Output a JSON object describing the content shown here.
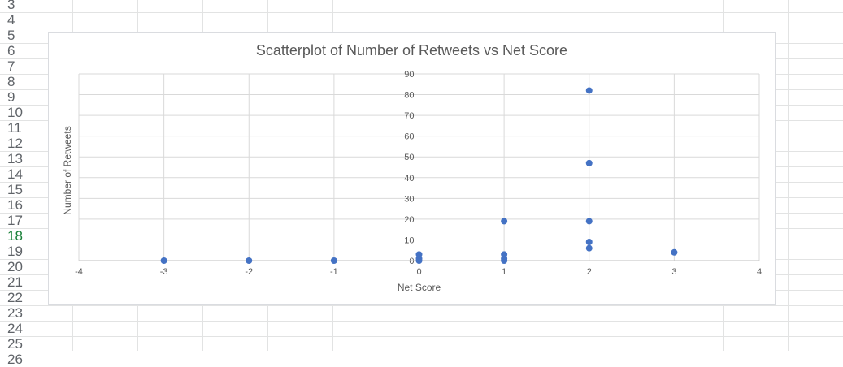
{
  "sheet": {
    "row_numbers": [
      "3",
      "4",
      "5",
      "6",
      "7",
      "8",
      "9",
      "10",
      "11",
      "12",
      "13",
      "14",
      "15",
      "16",
      "17",
      "18",
      "19",
      "20",
      "21",
      "22",
      "23",
      "24",
      "25",
      "26"
    ],
    "active_row": "18",
    "active_row_color": "#188038",
    "grid_color": "#e2e3e3"
  },
  "chart_data": {
    "type": "scatter",
    "title": "Scatterplot of Number of Retweets vs Net Score",
    "xlabel": "Net Score",
    "ylabel": "Number of Retweets",
    "xlim": [
      -4,
      4
    ],
    "ylim": [
      0,
      90
    ],
    "xticks": [
      -4,
      -3,
      -2,
      -1,
      0,
      1,
      2,
      3,
      4
    ],
    "yticks": [
      0,
      10,
      20,
      30,
      40,
      50,
      60,
      70,
      80,
      90
    ],
    "grid": true,
    "marker_color": "#4472c4",
    "points": [
      {
        "x": -3,
        "y": 0
      },
      {
        "x": -2,
        "y": 0
      },
      {
        "x": -1,
        "y": 0
      },
      {
        "x": 0,
        "y": 0
      },
      {
        "x": 0,
        "y": 1
      },
      {
        "x": 0,
        "y": 3
      },
      {
        "x": 1,
        "y": 0
      },
      {
        "x": 1,
        "y": 1
      },
      {
        "x": 1,
        "y": 3
      },
      {
        "x": 1,
        "y": 19
      },
      {
        "x": 2,
        "y": 6
      },
      {
        "x": 2,
        "y": 9
      },
      {
        "x": 2,
        "y": 19
      },
      {
        "x": 2,
        "y": 47
      },
      {
        "x": 2,
        "y": 82
      },
      {
        "x": 3,
        "y": 4
      }
    ]
  }
}
